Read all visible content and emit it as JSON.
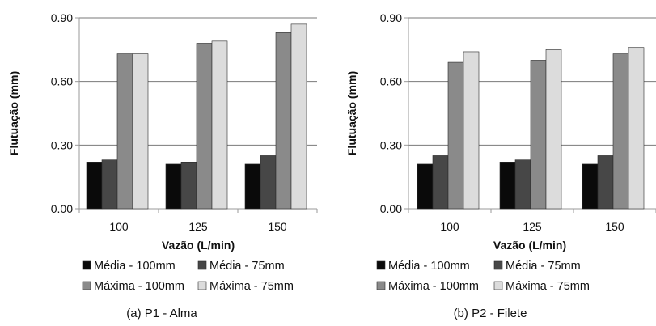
{
  "colors": {
    "series": [
      "#0a0a0a",
      "#474747",
      "#8a8a8a",
      "#dcdcdc"
    ],
    "axis": "#9a9a9a",
    "grid": "#7a7a7a",
    "bar_stroke": "#2a2a2a"
  },
  "chart_data": [
    {
      "type": "bar",
      "caption": "(a) P1 - Alma",
      "xlabel": "Vazão (L/min)",
      "ylabel": "Flutuação (mm)",
      "categories": [
        "100",
        "125",
        "150"
      ],
      "ylim": [
        0,
        0.9
      ],
      "yticks": [
        "0.00",
        "0.30",
        "0.60",
        "0.90"
      ],
      "grid": true,
      "legend_position": "bottom",
      "series": [
        {
          "name": "Média - 100mm",
          "values": [
            0.22,
            0.21,
            0.21
          ]
        },
        {
          "name": "Média - 75mm",
          "values": [
            0.23,
            0.22,
            0.25
          ]
        },
        {
          "name": "Máxima - 100mm",
          "values": [
            0.73,
            0.78,
            0.83
          ]
        },
        {
          "name": "Máxima - 75mm",
          "values": [
            0.73,
            0.79,
            0.87
          ]
        }
      ]
    },
    {
      "type": "bar",
      "caption": "(b) P2 - Filete",
      "xlabel": "Vazão (L/min)",
      "ylabel": "Flutuação (mm)",
      "categories": [
        "100",
        "125",
        "150"
      ],
      "ylim": [
        0,
        0.9
      ],
      "yticks": [
        "0.00",
        "0.30",
        "0.60",
        "0.90"
      ],
      "grid": true,
      "legend_position": "bottom",
      "series": [
        {
          "name": "Média - 100mm",
          "values": [
            0.21,
            0.22,
            0.21
          ]
        },
        {
          "name": "Média - 75mm",
          "values": [
            0.25,
            0.23,
            0.25
          ]
        },
        {
          "name": "Máxima - 100mm",
          "values": [
            0.69,
            0.7,
            0.73
          ]
        },
        {
          "name": "Máxima - 75mm",
          "values": [
            0.74,
            0.75,
            0.76
          ]
        }
      ]
    }
  ]
}
